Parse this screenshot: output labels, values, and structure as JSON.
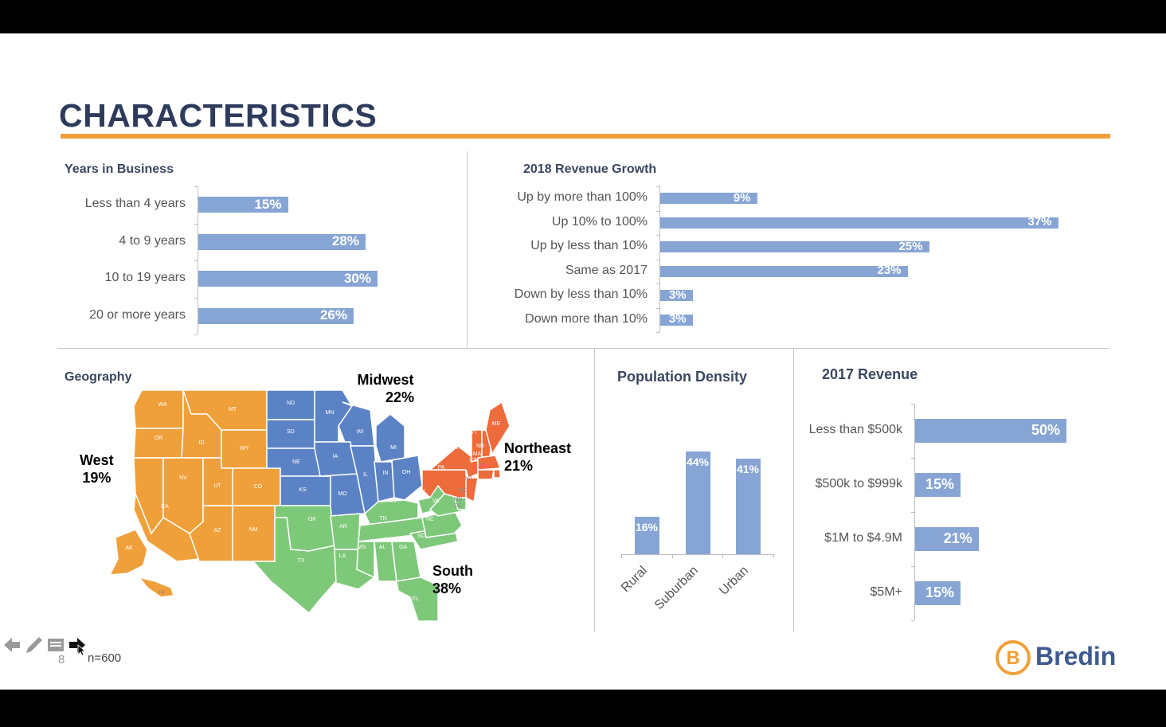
{
  "slide": {
    "title": "CHARACTERISTICS",
    "page_number": "8",
    "sample_note": "n=600",
    "logo_text": "Bredin",
    "accent_color": "#f0a03a",
    "bar_color": "#87a5d4"
  },
  "chart_data": [
    {
      "type": "bar",
      "orientation": "horizontal",
      "title": "Years in Business",
      "categories": [
        "Less than 4 years",
        "4 to 9 years",
        "10 to 19 years",
        "20 or more years"
      ],
      "values": [
        15,
        28,
        30,
        26
      ],
      "value_labels": [
        "15%",
        "28%",
        "30%",
        "26%"
      ]
    },
    {
      "type": "bar",
      "orientation": "horizontal",
      "title": "2018 Revenue Growth",
      "categories": [
        "Up by more than 100%",
        "Up 10% to 100%",
        "Up by less than 10%",
        "Same as 2017",
        "Down by less than 10%",
        "Down more than 10%"
      ],
      "values": [
        9,
        37,
        25,
        23,
        3,
        3
      ],
      "value_labels": [
        "9%",
        "37%",
        "25%",
        "23%",
        "3%",
        "3%"
      ]
    },
    {
      "type": "bar",
      "orientation": "vertical",
      "title": "Population Density",
      "categories": [
        "Rural",
        "Suburban",
        "Urban"
      ],
      "values": [
        16,
        44,
        41
      ],
      "value_labels": [
        "16%",
        "44%",
        "41%"
      ]
    },
    {
      "type": "bar",
      "orientation": "horizontal",
      "title": "2017 Revenue",
      "categories": [
        "Less than $500k",
        "$500k to $999k",
        "$1M to $4.9M",
        "$5M+"
      ],
      "values": [
        50,
        15,
        21,
        15
      ],
      "value_labels": [
        "50%",
        "15%",
        "21%",
        "15%"
      ]
    }
  ],
  "geography": {
    "title": "Geography",
    "regions": [
      {
        "name": "West",
        "value": "19%",
        "color": "#f0a03a"
      },
      {
        "name": "Midwest",
        "value": "22%",
        "color": "#5b82c4"
      },
      {
        "name": "Northeast",
        "value": "21%",
        "color": "#ee6b3b"
      },
      {
        "name": "South",
        "value": "38%",
        "color": "#7ec87a"
      }
    ],
    "state_labels": {
      "west": [
        "WA",
        "MT",
        "OR",
        "ID",
        "WY",
        "NV",
        "UT",
        "CO",
        "CA",
        "AZ",
        "NM",
        "AK",
        "HI"
      ],
      "midwest": [
        "ND",
        "MN",
        "SD",
        "WI",
        "MI",
        "NE",
        "IA",
        "IL",
        "IN",
        "OH",
        "KS",
        "MO"
      ],
      "northeast": [
        "ME",
        "VT",
        "NH",
        "NY",
        "MA",
        "CT",
        "RI",
        "PA",
        "NJ"
      ],
      "south": [
        "DE",
        "MD",
        "DC",
        "WV",
        "VA",
        "KY",
        "OK",
        "TN",
        "NC",
        "AR",
        "SC",
        "TX",
        "MS",
        "AL",
        "GA",
        "LA",
        "FL"
      ]
    }
  },
  "toolbar": {
    "icons": [
      "arrow-left-icon",
      "pen-icon",
      "menu-icon",
      "arrow-right-icon"
    ]
  }
}
